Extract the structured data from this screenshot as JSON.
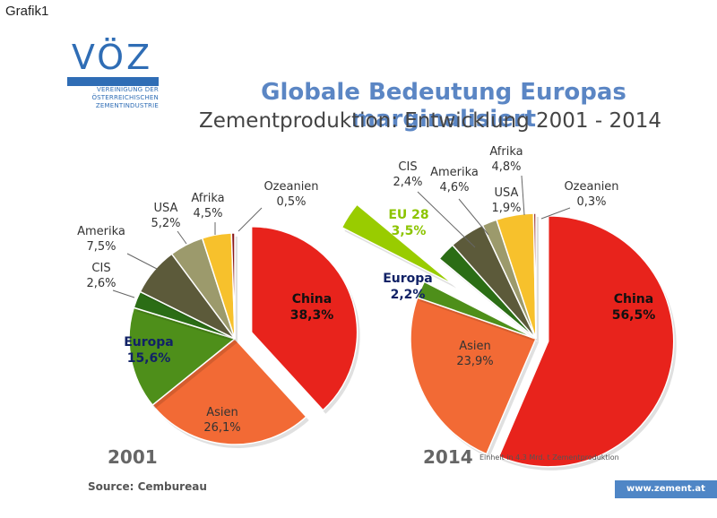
{
  "header": {
    "grafik_label": "Grafik1",
    "title": "Globale Bedeutung Europas marginalisiert",
    "subtitle": "Zementproduktion: Entwicklung 2001 - 2014"
  },
  "logo": {
    "word": "VÖZ",
    "lines": [
      "VEREINIGUNG DER",
      "ÖSTERREICHISCHEN",
      "ZEMENTINDUSTRIE"
    ]
  },
  "footer": {
    "source": "Source: Cembureau",
    "unit_note": "Einheit in 4.3 Mrd. t Zementproduktion",
    "url": "www.zement.at"
  },
  "colors": {
    "china": "#e8231c",
    "asien": "#f26a35",
    "europa": "#4e8f1a",
    "eu28": "#99cc00",
    "cis": "#2b6d15",
    "amerika": "#5c5a3a",
    "usa": "#9c9a6c",
    "afrika": "#f7c12c",
    "ozeanien": "#8b1a1a"
  },
  "chart_data": [
    {
      "type": "pie",
      "year_label": "2001",
      "unit": "%",
      "slices": [
        {
          "name": "China",
          "value": 38.3,
          "label": "38,3%",
          "color_key": "china",
          "exploded": true,
          "bold": true
        },
        {
          "name": "Asien",
          "value": 26.1,
          "label": "26,1%",
          "color_key": "asien"
        },
        {
          "name": "Europa",
          "value": 15.6,
          "label": "15,6%",
          "color_key": "europa",
          "bold": true
        },
        {
          "name": "CIS",
          "value": 2.6,
          "label": "2,6%",
          "color_key": "cis"
        },
        {
          "name": "Amerika",
          "value": 7.5,
          "label": "7,5%",
          "color_key": "amerika"
        },
        {
          "name": "USA",
          "value": 5.2,
          "label": "5,2%",
          "color_key": "usa"
        },
        {
          "name": "Afrika",
          "value": 4.5,
          "label": "4,5%",
          "color_key": "afrika"
        },
        {
          "name": "Ozeanien",
          "value": 0.5,
          "label": "0,5%",
          "color_key": "ozeanien"
        }
      ]
    },
    {
      "type": "pie",
      "year_label": "2014",
      "unit": "%",
      "slices": [
        {
          "name": "China",
          "value": 56.5,
          "label": "56,5%",
          "color_key": "china",
          "exploded": true,
          "bold": true
        },
        {
          "name": "Asien",
          "value": 23.9,
          "label": "23,9%",
          "color_key": "asien"
        },
        {
          "name": "Europa",
          "value": 2.2,
          "label": "2,2%",
          "color_key": "europa",
          "bold": true
        },
        {
          "name": "EU 28",
          "value": 3.5,
          "label": "3,5%",
          "color_key": "eu28",
          "exploded": true,
          "bold": true
        },
        {
          "name": "CIS",
          "value": 2.4,
          "label": "2,4%",
          "color_key": "cis"
        },
        {
          "name": "Amerika",
          "value": 4.6,
          "label": "4,6%",
          "color_key": "amerika"
        },
        {
          "name": "USA",
          "value": 1.9,
          "label": "1,9%",
          "color_key": "usa"
        },
        {
          "name": "Afrika",
          "value": 4.8,
          "label": "4,8%",
          "color_key": "afrika"
        },
        {
          "name": "Ozeanien",
          "value": 0.3,
          "label": "0,3%",
          "color_key": "ozeanien"
        }
      ]
    }
  ]
}
